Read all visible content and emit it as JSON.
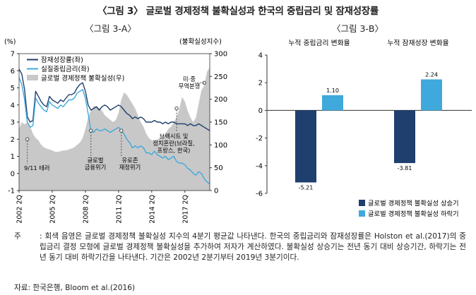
{
  "title": "〈그림 3〉 글로벌 경제정책 불확실성과 한국의 중립금리 및 잠재성장률",
  "panel_a": {
    "subtitle": "〈그림 3-A〉",
    "y_left_unit": "(%)",
    "y_right_unit": "(불확실성지수)",
    "legend": [
      "잠재성장률(좌)",
      "실질중립금리(좌)",
      "글로벌 경제정책 불확실성(우)"
    ],
    "annotations": [
      "9/11 테러",
      "글로벌\n금융위기",
      "유로존\n재정위기",
      "브렉시트 및\n정치혼란(브라질,\n프랑스, 한국)",
      "미·중\n무역분쟁"
    ]
  },
  "panel_b": {
    "subtitle": "〈그림 3-B〉",
    "col_labels": [
      "누적 중립금리 변화율",
      "누적 잠재성장 변화율"
    ],
    "legend": [
      "글로벌 경제정책 불확실성 상승기",
      "글로벌 경제정책 불확실성 하락기"
    ]
  },
  "note_label": "주",
  "note": ": 회색 음영은 글로벌 경제정책 불확실성 지수의 4분기 평균값 나타낸다. 한국의 중립금리와 잠재성장률은 Holston et al.(2017)의 중립금리 결정 모형에 글로벌 경제정책 불확실성을 추가하여 저자가 계산하였다. 불확실성 상승기는 전년 동기 대비 상승기간, 하락기는 전년 동기 대비 하락기간을 나타낸다. 기간은 2002년 2분기부터 2019년 3분기이다.",
  "source": "자료: 한국은행, Bloom et al.(2016)",
  "colors": {
    "dark": "#1f3f6e",
    "light": "#3fa9dc",
    "gray": "#c8c8c8"
  },
  "chart_data": [
    {
      "type": "line",
      "xlabel": "",
      "ylabel": "",
      "x_tick_labels": [
        "2002 2Q",
        "2005 2Q",
        "2008 2Q",
        "2011 2Q",
        "2014 2Q",
        "2017 2Q"
      ],
      "ylim": [
        -1,
        7
      ],
      "y_ticks": [
        -1,
        0,
        1,
        2,
        3,
        4,
        5,
        6,
        7
      ],
      "y2lim": [
        0,
        300
      ],
      "y2_ticks": [
        0,
        50,
        100,
        150,
        200,
        250,
        300
      ],
      "x_range": [
        2002.25,
        2019.5
      ],
      "series": [
        {
          "name": "잠재성장률(좌)",
          "axis": "left",
          "x": [
            2002.25,
            2002.5,
            2002.75,
            2003.0,
            2003.25,
            2003.5,
            2003.75,
            2004.0,
            2004.25,
            2004.5,
            2004.75,
            2005.0,
            2005.25,
            2005.5,
            2005.75,
            2006.0,
            2006.25,
            2006.5,
            2006.75,
            2007.0,
            2007.25,
            2007.5,
            2007.75,
            2008.0,
            2008.25,
            2008.5,
            2008.75,
            2009.0,
            2009.25,
            2009.5,
            2009.75,
            2010.0,
            2010.25,
            2010.5,
            2010.75,
            2011.0,
            2011.25,
            2011.5,
            2011.75,
            2012.0,
            2012.25,
            2012.5,
            2012.75,
            2013.0,
            2013.25,
            2013.5,
            2013.75,
            2014.0,
            2014.25,
            2014.5,
            2014.75,
            2015.0,
            2015.25,
            2015.5,
            2015.75,
            2016.0,
            2016.25,
            2016.5,
            2016.75,
            2017.0,
            2017.25,
            2017.5,
            2017.75,
            2018.0,
            2018.25,
            2018.5,
            2018.75,
            2019.0,
            2019.25,
            2019.5
          ],
          "values": [
            6.1,
            5.8,
            4.9,
            3.3,
            3.0,
            3.1,
            4.8,
            4.5,
            4.2,
            4.0,
            3.9,
            4.5,
            4.3,
            4.2,
            4.1,
            4.3,
            4.2,
            4.4,
            4.6,
            4.6,
            4.7,
            5.0,
            5.2,
            5.3,
            4.8,
            4.0,
            3.7,
            3.8,
            3.9,
            3.7,
            3.9,
            4.0,
            3.9,
            3.7,
            3.8,
            3.9,
            4.0,
            3.9,
            3.7,
            3.5,
            3.4,
            3.2,
            3.3,
            3.2,
            3.3,
            3.2,
            3.0,
            3.0,
            3.0,
            3.1,
            3.0,
            3.0,
            2.9,
            3.0,
            2.9,
            3.0,
            3.0,
            2.9,
            2.9,
            2.9,
            2.9,
            2.8,
            2.9,
            2.8,
            2.8,
            2.9,
            2.8,
            2.7,
            2.6,
            2.5
          ]
        },
        {
          "name": "실질중립금리(좌)",
          "axis": "left",
          "x": [
            2002.25,
            2002.5,
            2002.75,
            2003.0,
            2003.25,
            2003.5,
            2003.75,
            2004.0,
            2004.25,
            2004.5,
            2004.75,
            2005.0,
            2005.25,
            2005.5,
            2005.75,
            2006.0,
            2006.25,
            2006.5,
            2006.75,
            2007.0,
            2007.25,
            2007.5,
            2007.75,
            2008.0,
            2008.25,
            2008.5,
            2008.75,
            2009.0,
            2009.25,
            2009.5,
            2009.75,
            2010.0,
            2010.25,
            2010.5,
            2010.75,
            2011.0,
            2011.25,
            2011.5,
            2011.75,
            2012.0,
            2012.25,
            2012.5,
            2012.75,
            2013.0,
            2013.25,
            2013.5,
            2013.75,
            2014.0,
            2014.25,
            2014.5,
            2014.75,
            2015.0,
            2015.25,
            2015.5,
            2015.75,
            2016.0,
            2016.25,
            2016.5,
            2016.75,
            2017.0,
            2017.25,
            2017.5,
            2017.75,
            2018.0,
            2018.25,
            2018.5,
            2018.75,
            2019.0,
            2019.25,
            2019.5
          ],
          "values": [
            5.6,
            5.2,
            4.3,
            3.0,
            2.7,
            2.8,
            4.4,
            4.1,
            3.9,
            3.7,
            3.6,
            4.2,
            4.0,
            3.9,
            3.8,
            4.0,
            3.9,
            4.1,
            4.3,
            4.3,
            4.4,
            4.7,
            4.8,
            4.9,
            4.4,
            3.5,
            2.5,
            2.4,
            2.6,
            2.5,
            2.5,
            2.6,
            2.5,
            2.4,
            2.5,
            2.6,
            2.7,
            2.5,
            2.3,
            2.0,
            1.8,
            1.5,
            1.6,
            1.5,
            1.6,
            1.5,
            1.2,
            1.2,
            1.1,
            1.3,
            1.1,
            1.0,
            0.9,
            1.0,
            0.8,
            0.9,
            1.0,
            0.7,
            0.6,
            0.6,
            0.5,
            0.3,
            0.2,
            0.0,
            -0.1,
            0.1,
            0.0,
            -0.3,
            -0.5,
            -0.6
          ]
        },
        {
          "name": "글로벌 경제정책 불확실성(우)",
          "axis": "right",
          "type": "area",
          "x": [
            2002.25,
            2002.5,
            2002.75,
            2003.0,
            2003.25,
            2003.5,
            2003.75,
            2004.0,
            2004.25,
            2004.5,
            2004.75,
            2005.0,
            2005.25,
            2005.5,
            2005.75,
            2006.0,
            2006.25,
            2006.5,
            2006.75,
            2007.0,
            2007.25,
            2007.5,
            2007.75,
            2008.0,
            2008.25,
            2008.5,
            2008.75,
            2009.0,
            2009.25,
            2009.5,
            2009.75,
            2010.0,
            2010.25,
            2010.5,
            2010.75,
            2011.0,
            2011.25,
            2011.5,
            2011.75,
            2012.0,
            2012.25,
            2012.5,
            2012.75,
            2013.0,
            2013.25,
            2013.5,
            2013.75,
            2014.0,
            2014.25,
            2014.5,
            2014.75,
            2015.0,
            2015.25,
            2015.5,
            2015.75,
            2016.0,
            2016.25,
            2016.5,
            2016.75,
            2017.0,
            2017.25,
            2017.5,
            2017.75,
            2018.0,
            2018.25,
            2018.5,
            2018.75,
            2019.0,
            2019.25,
            2019.5
          ],
          "values": [
            135,
            150,
            145,
            150,
            140,
            125,
            115,
            110,
            100,
            95,
            92,
            90,
            88,
            85,
            85,
            86,
            88,
            88,
            90,
            92,
            95,
            100,
            105,
            115,
            135,
            160,
            175,
            185,
            185,
            180,
            175,
            165,
            160,
            155,
            150,
            155,
            170,
            200,
            215,
            210,
            200,
            190,
            180,
            165,
            150,
            140,
            125,
            115,
            110,
            110,
            112,
            115,
            118,
            125,
            135,
            140,
            150,
            160,
            180,
            205,
            195,
            175,
            160,
            150,
            160,
            190,
            220,
            230,
            260,
            270
          ]
        }
      ]
    },
    {
      "type": "bar",
      "categories": [
        "누적 중립금리 변화율",
        "누적 잠재성장 변화율"
      ],
      "ylim": [
        -6,
        4
      ],
      "y_ticks": [
        -6,
        -4,
        -2,
        0,
        2,
        4
      ],
      "series": [
        {
          "name": "글로벌 경제정책 불확실성 상승기",
          "values": [
            -5.21,
            -3.81
          ]
        },
        {
          "name": "글로벌 경제정책 불확실성 하락기",
          "values": [
            1.1,
            2.24
          ]
        }
      ],
      "data_labels": [
        "-5.21",
        "1.10",
        "-3.81",
        "2.24"
      ],
      "legend_position": "bottom-right"
    }
  ]
}
